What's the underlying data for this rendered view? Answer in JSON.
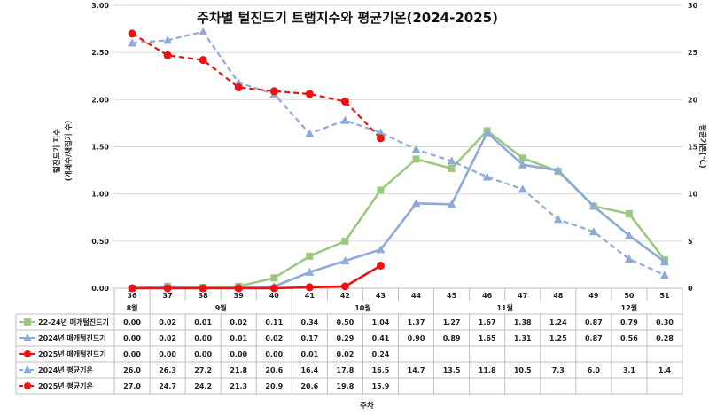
{
  "chart_data": {
    "type": "line",
    "title": "주차별 털진드기 트랩지수와 평균기온(2024-2025)",
    "xlabel": "주차",
    "ylabel_left": "털진드기 지수",
    "ylabel_left_sub": "(개체수/채집기 수)",
    "ylabel_right": "평균기온(℃)",
    "ylim_left": [
      0,
      3
    ],
    "ylim_right": [
      0,
      30
    ],
    "y_ticks_left": [
      "0.00",
      "0.50",
      "1.00",
      "1.50",
      "2.00",
      "2.50",
      "3.00"
    ],
    "y_ticks_right": [
      "0",
      "5",
      "10",
      "15",
      "20",
      "25",
      "30"
    ],
    "weeks": [
      "36",
      "37",
      "38",
      "39",
      "40",
      "41",
      "42",
      "43",
      "44",
      "45",
      "46",
      "47",
      "48",
      "49",
      "50",
      "51"
    ],
    "months": [
      "8월",
      "9월",
      "10월",
      "11월",
      "12월"
    ],
    "series": [
      {
        "name": "22-24년 매개털진드기",
        "axis": "left",
        "color": "#9bc97f",
        "marker": "square",
        "dash": false,
        "values": [
          0.0,
          0.02,
          0.01,
          0.02,
          0.11,
          0.34,
          0.5,
          1.04,
          1.37,
          1.27,
          1.67,
          1.38,
          1.24,
          0.87,
          0.79,
          0.3
        ]
      },
      {
        "name": "2024년 매개털진드기",
        "axis": "left",
        "color": "#8eaad9",
        "marker": "triangle",
        "dash": false,
        "values": [
          0.0,
          0.02,
          0.0,
          0.01,
          0.02,
          0.17,
          0.29,
          0.41,
          0.9,
          0.89,
          1.65,
          1.31,
          1.25,
          0.87,
          0.56,
          0.28
        ]
      },
      {
        "name": "2025년 매개털진드기",
        "axis": "left",
        "color": "#ee1111",
        "marker": "circle",
        "dash": false,
        "values": [
          0.0,
          0.0,
          0.0,
          0.0,
          0.0,
          0.01,
          0.02,
          0.24,
          null,
          null,
          null,
          null,
          null,
          null,
          null,
          null
        ]
      },
      {
        "name": "2024년 평균기온",
        "axis": "right",
        "color": "#8eaad9",
        "marker": "triangle",
        "dash": true,
        "values": [
          26.0,
          26.3,
          27.2,
          21.8,
          20.6,
          16.4,
          17.8,
          16.5,
          14.7,
          13.5,
          11.8,
          10.5,
          7.3,
          6.0,
          3.1,
          1.4
        ]
      },
      {
        "name": "2025년 평균기온",
        "axis": "right",
        "color": "#ee1111",
        "marker": "circle",
        "dash": true,
        "values": [
          27.0,
          24.7,
          24.2,
          21.3,
          20.9,
          20.6,
          19.8,
          15.9,
          null,
          null,
          null,
          null,
          null,
          null,
          null,
          null
        ]
      }
    ],
    "table_rows": [
      {
        "label": "22-24년 매개털진드기",
        "cells": [
          "0.00",
          "0.02",
          "0.01",
          "0.02",
          "0.11",
          "0.34",
          "0.50",
          "1.04",
          "1.37",
          "1.27",
          "1.67",
          "1.38",
          "1.24",
          "0.87",
          "0.79",
          "0.30"
        ]
      },
      {
        "label": "2024년 매개털진드기",
        "cells": [
          "0.00",
          "0.02",
          "0.00",
          "0.01",
          "0.02",
          "0.17",
          "0.29",
          "0.41",
          "0.90",
          "0.89",
          "1.65",
          "1.31",
          "1.25",
          "0.87",
          "0.56",
          "0.28"
        ]
      },
      {
        "label": "2025년 매개털진드기",
        "cells": [
          "0.00",
          "0.00",
          "0.00",
          "0.00",
          "0.00",
          "0.01",
          "0.02",
          "0.24",
          "",
          "",
          "",
          "",
          "",
          "",
          "",
          ""
        ]
      },
      {
        "label": "2024년 평균기온",
        "cells": [
          "26.0",
          "26.3",
          "27.2",
          "21.8",
          "20.6",
          "16.4",
          "17.8",
          "16.5",
          "14.7",
          "13.5",
          "11.8",
          "10.5",
          "7.3",
          "6.0",
          "3.1",
          "1.4"
        ]
      },
      {
        "label": "2025년 평균기온",
        "cells": [
          "27.0",
          "24.7",
          "24.2",
          "21.3",
          "20.9",
          "20.6",
          "19.8",
          "15.9",
          "",
          "",
          "",
          "",
          "",
          "",
          "",
          ""
        ]
      }
    ],
    "grid": true
  }
}
